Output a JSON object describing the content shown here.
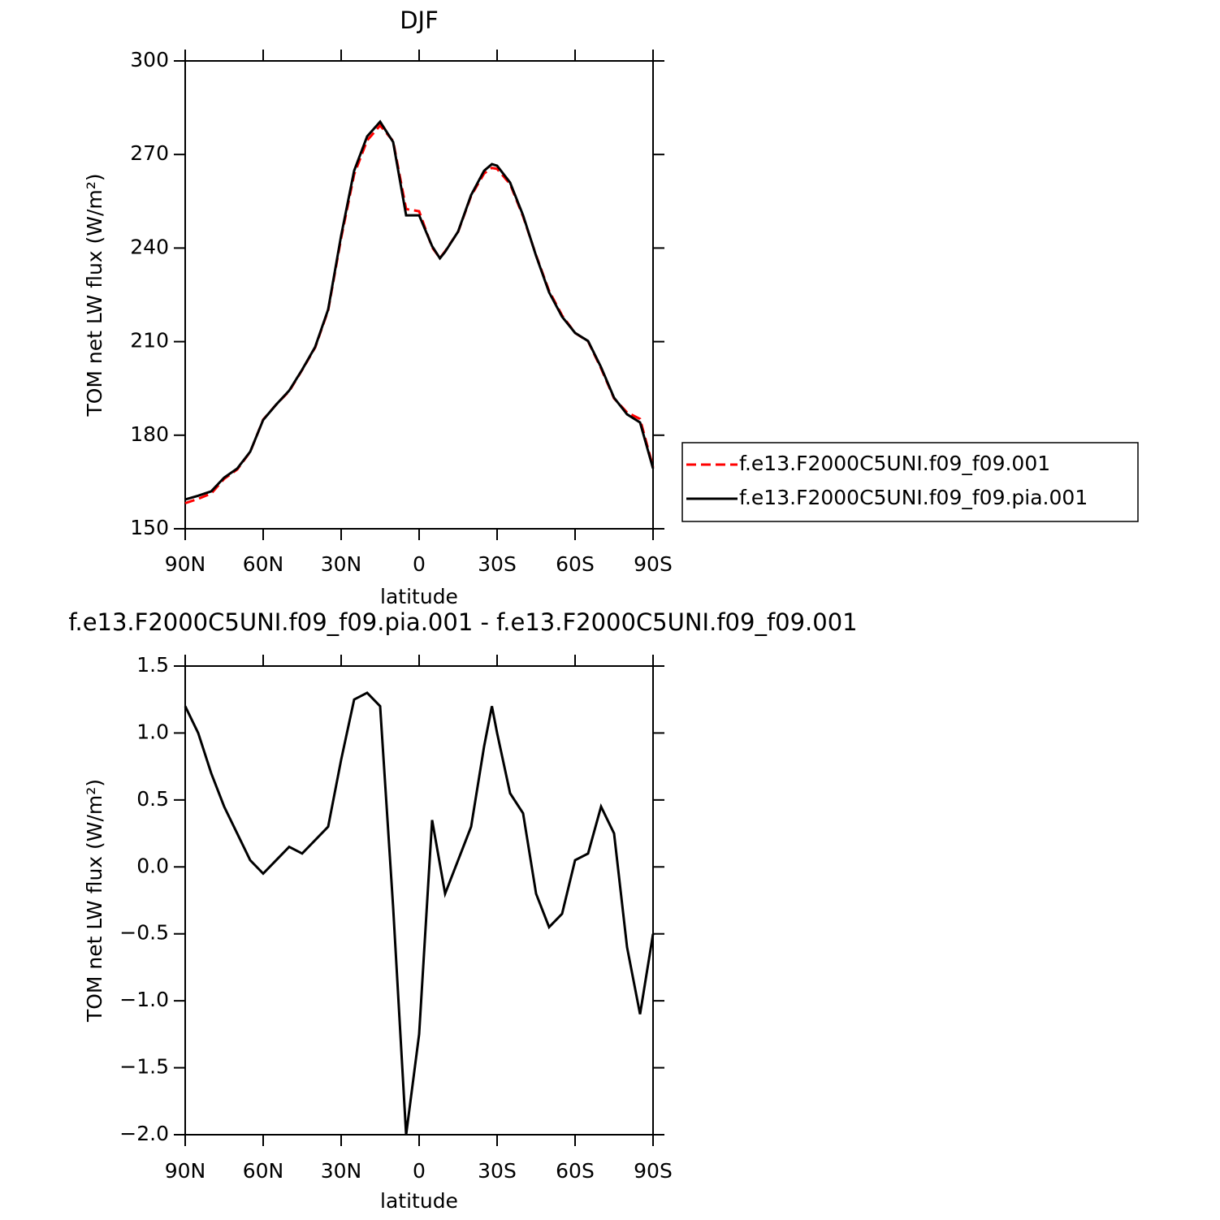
{
  "chart_data": [
    {
      "type": "line",
      "title": "DJF",
      "x_label": "latitude",
      "y_label": "TOM net LW flux (W/m²)",
      "x": [
        90,
        85,
        80,
        75,
        70,
        65,
        60,
        55,
        50,
        45,
        40,
        35,
        30,
        25,
        20,
        15,
        10,
        5,
        0,
        -5,
        -8,
        -10,
        -15,
        -20,
        -25,
        -28,
        -30,
        -35,
        -40,
        -45,
        -50,
        -55,
        -60,
        -65,
        -70,
        -75,
        -80,
        -85,
        -90
      ],
      "series": [
        {
          "name": "f.e13.F2000C5UNI.f09_f09.001",
          "color": "#ff0000",
          "line_style": "dashed",
          "values": [
            158.2,
            159.6,
            161.3,
            166,
            169,
            174.6,
            185,
            189.8,
            194.1,
            200.9,
            208.1,
            220,
            243.2,
            263.6,
            274.5,
            279.3,
            274.3,
            252.5,
            251.8,
            240.2,
            236.8,
            239,
            245.2,
            256.7,
            263.9,
            265.7,
            265.4,
            260.5,
            250.1,
            237.7,
            226.3,
            218.4,
            212.8,
            210.1,
            201.4,
            191.8,
            187.3,
            185.2,
            169.8
          ]
        },
        {
          "name": "f.e13.F2000C5UNI.f09_f09.pia.001",
          "color": "#000000",
          "line_style": "solid",
          "values": [
            159.4,
            160.6,
            162,
            166.4,
            169.3,
            174.7,
            184.9,
            189.8,
            194.3,
            201,
            208.3,
            220.3,
            244,
            264.8,
            275.8,
            280.5,
            274,
            250.5,
            250.5,
            240.6,
            236.7,
            238.8,
            245.3,
            257,
            264.8,
            266.9,
            266.4,
            261,
            250.5,
            237.5,
            225.8,
            218,
            212.8,
            210.2,
            201.8,
            192,
            186.7,
            184.1,
            169.3
          ]
        }
      ],
      "xlim": [
        90,
        -90
      ],
      "xticks": [
        {
          "value": 90,
          "label": "90N"
        },
        {
          "value": 60,
          "label": "60N"
        },
        {
          "value": 30,
          "label": "30N"
        },
        0,
        {
          "value": -30,
          "label": "30S"
        },
        {
          "value": -60,
          "label": "60S"
        },
        {
          "value": -90,
          "label": "90S"
        }
      ],
      "ylim": [
        150,
        300
      ],
      "yticks": [
        150,
        180,
        210,
        240,
        270,
        300
      ],
      "grid": false,
      "legend": "outside right"
    },
    {
      "type": "line",
      "title": "f.e13.F2000C5UNI.f09_f09.pia.001 - f.e13.F2000C5UNI.f09_f09.001",
      "x_label": "latitude",
      "y_label": "TOM net LW flux (W/m²)",
      "x": [
        90,
        85,
        80,
        75,
        70,
        65,
        60,
        55,
        50,
        45,
        40,
        35,
        30,
        25,
        20,
        15,
        10,
        5,
        0,
        -5,
        -10,
        -15,
        -20,
        -25,
        -28,
        -30,
        -35,
        -40,
        -45,
        -50,
        -55,
        -60,
        -65,
        -70,
        -75,
        -80,
        -85,
        -90
      ],
      "values": [
        1.2,
        1.0,
        0.7,
        0.45,
        0.25,
        0.05,
        -0.05,
        0.05,
        0.15,
        0.1,
        0.2,
        0.3,
        0.8,
        1.25,
        1.3,
        1.2,
        -0.3,
        -2.0,
        -1.25,
        0.35,
        -0.2,
        0.05,
        0.3,
        0.9,
        1.2,
        1.0,
        0.55,
        0.4,
        -0.2,
        -0.45,
        -0.35,
        0.05,
        0.1,
        0.45,
        0.25,
        -0.6,
        -1.1,
        -0.5
      ],
      "color": "#000000",
      "xlim": [
        90,
        -90
      ],
      "xticks": [
        {
          "value": 90,
          "label": "90N"
        },
        {
          "value": 60,
          "label": "60N"
        },
        {
          "value": 30,
          "label": "30N"
        },
        0,
        {
          "value": -30,
          "label": "30S"
        },
        {
          "value": -60,
          "label": "60S"
        },
        {
          "value": -90,
          "label": "90S"
        }
      ],
      "ylim": [
        -2.0,
        1.5
      ],
      "yticks": [
        {
          "value": -2.0,
          "label": "−2.0"
        },
        {
          "value": -1.5,
          "label": "−1.5"
        },
        {
          "value": -1.0,
          "label": "−1.0"
        },
        {
          "value": -0.5,
          "label": "−0.5"
        },
        {
          "value": 0.0,
          "label": "0.0"
        },
        {
          "value": 0.5,
          "label": "0.5"
        },
        {
          "value": 1.0,
          "label": "1.0"
        },
        1.5
      ],
      "grid": false
    }
  ]
}
